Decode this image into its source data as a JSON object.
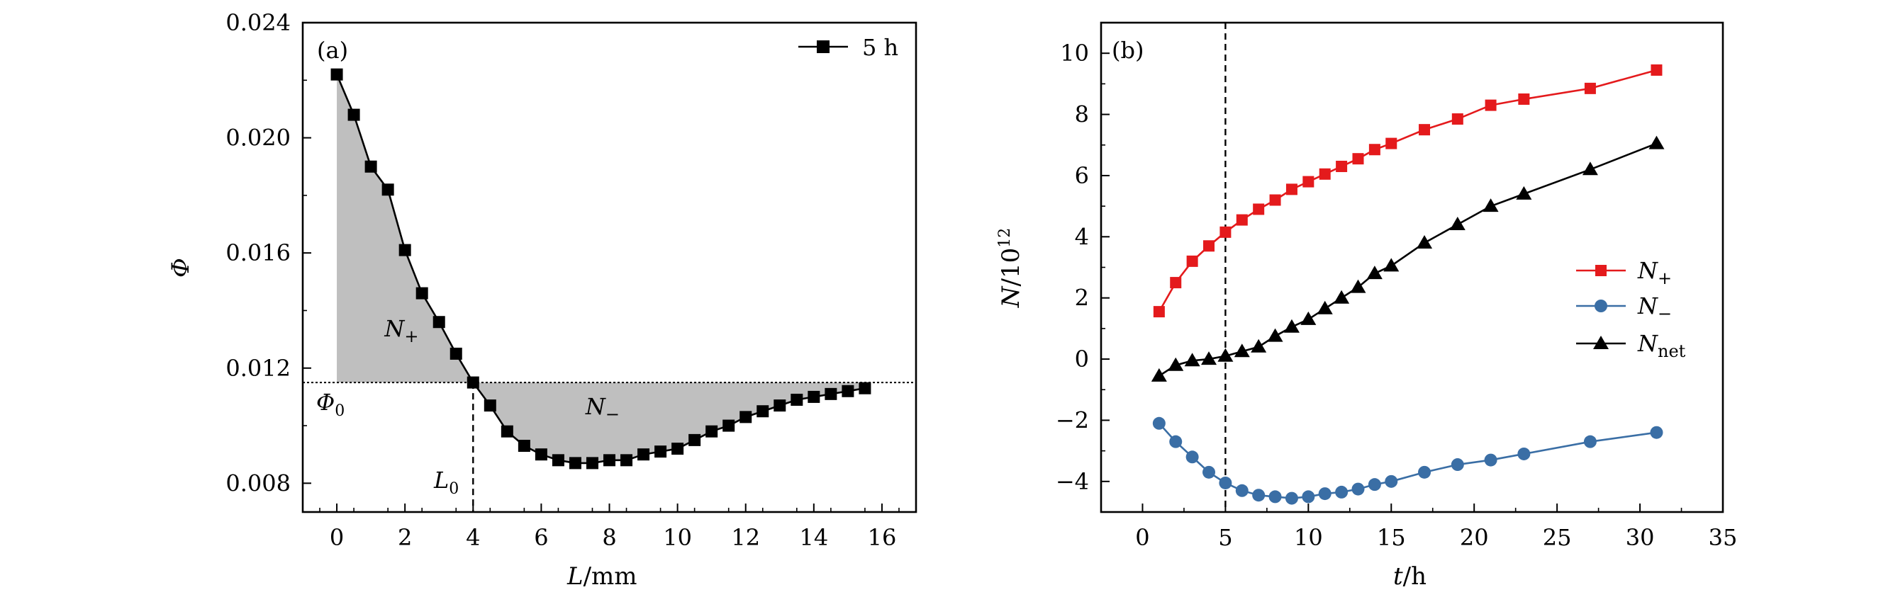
{
  "chart_data": [
    {
      "type": "line",
      "panel_label": "(a)",
      "xlabel": {
        "var": "L",
        "unit": "/mm"
      },
      "ylabel": "Φ",
      "xlim": [
        -1,
        17
      ],
      "ylim": [
        0.007,
        0.024
      ],
      "xticks": [
        0,
        2,
        4,
        6,
        8,
        10,
        12,
        14,
        16
      ],
      "yticks": [
        0.008,
        0.012,
        0.016,
        0.02,
        0.024
      ],
      "ytick_labels": [
        "0.008",
        "0.012",
        "0.016",
        "0.020",
        "0.024"
      ],
      "series": [
        {
          "name": "5 h",
          "color": "#000000",
          "marker": "square",
          "x": [
            0,
            0.5,
            1,
            1.5,
            2,
            2.5,
            3,
            3.5,
            4,
            4.5,
            5,
            5.5,
            6,
            6.5,
            7,
            7.5,
            8,
            8.5,
            9,
            9.5,
            10,
            10.5,
            11,
            11.5,
            12,
            12.5,
            13,
            13.5,
            14,
            14.5,
            15,
            15.5
          ],
          "y": [
            0.0222,
            0.0208,
            0.019,
            0.0182,
            0.0161,
            0.0146,
            0.0136,
            0.0125,
            0.0115,
            0.0107,
            0.0098,
            0.0093,
            0.009,
            0.0088,
            0.0087,
            0.0087,
            0.0088,
            0.0088,
            0.009,
            0.0091,
            0.0092,
            0.0095,
            0.0098,
            0.01,
            0.0103,
            0.0105,
            0.0107,
            0.0109,
            0.011,
            0.0111,
            0.0112,
            0.0113
          ]
        }
      ],
      "reference_line": {
        "y": 0.0115,
        "label": "Φ",
        "label_sub": "0",
        "style": "dotted"
      },
      "vertical_marker": {
        "x": 4,
        "label": "L",
        "label_sub": "0",
        "style": "dashed"
      },
      "shaded_regions": [
        {
          "name": "N",
          "name_sub": "+",
          "x_from": 0,
          "x_to": 4,
          "text_pos": [
            1.4,
            0.0131
          ]
        },
        {
          "name": "N",
          "name_sub": "−",
          "x_from": 4,
          "x_to": 15.5,
          "text_pos": [
            7.3,
            0.0104
          ]
        }
      ],
      "legend": {
        "position": "top-right",
        "entries": [
          "5 h"
        ]
      }
    },
    {
      "type": "line",
      "panel_label": "(b)",
      "xlabel": {
        "var": "t",
        "unit": "/h"
      },
      "ylabel": {
        "text": "N/10",
        "sup": "12"
      },
      "xlim": [
        -2.5,
        35
      ],
      "ylim": [
        -5,
        11
      ],
      "xticks": [
        0,
        5,
        10,
        15,
        20,
        25,
        30,
        35
      ],
      "yticks": [
        -4,
        -2,
        0,
        2,
        4,
        6,
        8,
        10
      ],
      "ytick_labels": [
        "−4",
        "−2",
        "0",
        "2",
        "4",
        "6",
        "8",
        "10"
      ],
      "vertical_marker": {
        "x": 5,
        "style": "dashed"
      },
      "x": [
        1,
        2,
        3,
        4,
        5,
        6,
        7,
        8,
        9,
        10,
        11,
        12,
        13,
        14,
        15,
        17,
        19,
        21,
        23,
        27,
        31
      ],
      "series": [
        {
          "name": "N",
          "name_sub": "+",
          "color": "#e41a1c",
          "marker": "square",
          "values": [
            1.55,
            2.5,
            3.2,
            3.7,
            4.15,
            4.55,
            4.9,
            5.2,
            5.55,
            5.8,
            6.05,
            6.3,
            6.55,
            6.85,
            7.05,
            7.5,
            7.85,
            8.3,
            8.5,
            8.85,
            9.45
          ]
        },
        {
          "name": "N",
          "name_sub": "−",
          "color": "#3a6ea5",
          "marker": "circle",
          "values": [
            -2.1,
            -2.7,
            -3.2,
            -3.7,
            -4.05,
            -4.3,
            -4.45,
            -4.5,
            -4.55,
            -4.5,
            -4.4,
            -4.35,
            -4.25,
            -4.1,
            -4.0,
            -3.7,
            -3.45,
            -3.3,
            -3.1,
            -2.7,
            -2.4
          ]
        },
        {
          "name": "N",
          "name_sub": "net",
          "color": "#000000",
          "marker": "triangle",
          "values": [
            -0.55,
            -0.2,
            -0.05,
            0.0,
            0.1,
            0.25,
            0.4,
            0.75,
            1.05,
            1.3,
            1.65,
            2.0,
            2.35,
            2.8,
            3.05,
            3.8,
            4.4,
            5.0,
            5.4,
            6.2,
            7.05
          ]
        }
      ],
      "legend": {
        "position": "center-right"
      }
    }
  ]
}
